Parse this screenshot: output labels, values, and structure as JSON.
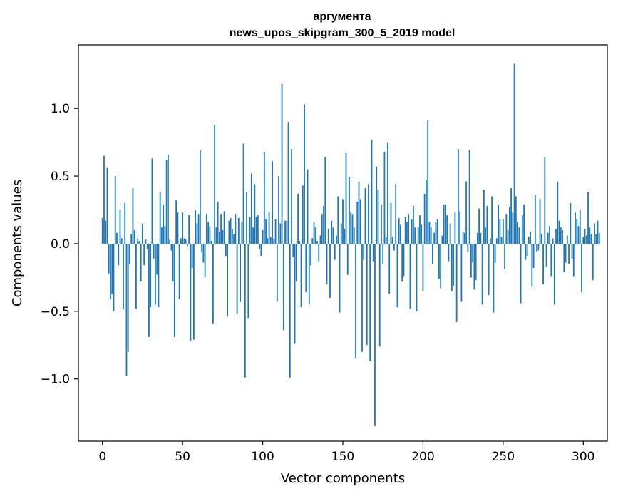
{
  "chart_data": {
    "type": "bar",
    "title_lines": [
      "аргумента",
      "news_upos_skipgram_300_5_2019 model"
    ],
    "xlabel": "Vector components",
    "ylabel": "Components values",
    "xlim": [
      -15,
      315
    ],
    "ylim": [
      -1.46,
      1.47
    ],
    "x_ticks": [
      0,
      50,
      100,
      150,
      200,
      250,
      300
    ],
    "x_tick_labels": [
      "0",
      "50",
      "100",
      "150",
      "200",
      "250",
      "300"
    ],
    "y_ticks": [
      -1.0,
      -0.5,
      0.0,
      0.5,
      1.0
    ],
    "y_tick_labels": [
      "−1.0",
      "−0.5",
      "0.0",
      "0.5",
      "1.0"
    ],
    "bar_color": "#1f77b4",
    "grid": false,
    "values": [
      0.19,
      0.65,
      0.17,
      0.56,
      -0.22,
      -0.41,
      -0.37,
      -0.5,
      0.5,
      0.08,
      -0.16,
      0.25,
      0.04,
      -0.48,
      0.3,
      -0.98,
      -0.8,
      -0.15,
      0.07,
      0.41,
      0.1,
      -0.48,
      0.04,
      0.02,
      -0.28,
      0.15,
      -0.16,
      0.03,
      -0.04,
      -0.69,
      -0.47,
      0.63,
      -0.11,
      -0.45,
      -0.23,
      -0.47,
      0.38,
      0.12,
      0.29,
      0.13,
      0.62,
      0.66,
      0.03,
      -0.05,
      -0.28,
      -0.69,
      0.32,
      0.23,
      -0.41,
      0.04,
      0.23,
      0.04,
      0.03,
      -0.02,
      0.21,
      -0.72,
      -0.18,
      -0.71,
      0.25,
      0.15,
      0.22,
      0.69,
      -0.06,
      -0.14,
      -0.25,
      0.22,
      0.16,
      0.13,
      0.02,
      -0.59,
      0.88,
      0.12,
      0.31,
      0.09,
      0.22,
      0.1,
      0.24,
      -0.09,
      -0.54,
      0.17,
      0.19,
      0.11,
      0.07,
      0.22,
      -0.52,
      0.19,
      -0.43,
      0.16,
      0.74,
      -0.99,
      0.38,
      -0.55,
      0.2,
      0.52,
      0.12,
      0.44,
      0.2,
      0.21,
      -0.04,
      -0.09,
      0.1,
      0.68,
      0.18,
      0.04,
      0.23,
      0.05,
      0.61,
      0.04,
      0.18,
      -0.43,
      0.5,
      0.15,
      1.18,
      -0.64,
      0.17,
      0.17,
      0.9,
      -0.99,
      0.7,
      -0.1,
      -0.74,
      -0.28,
      0.37,
      0.02,
      -0.47,
      0.43,
      1.03,
      -0.36,
      0.55,
      -0.45,
      -0.16,
      0.04,
      0.16,
      0.12,
      0.02,
      -0.13,
      0.06,
      0.22,
      0.28,
      0.64,
      -0.3,
      0.11,
      -0.4,
      0.17,
      0.12,
      -0.12,
      0.06,
      0.35,
      -0.51,
      0.15,
      0.33,
      0.11,
      0.67,
      -0.23,
      0.49,
      0.23,
      0.22,
      0.12,
      -0.85,
      0.31,
      0.46,
      0.33,
      -0.8,
      -0.12,
      0.41,
      -0.75,
      0.44,
      -0.87,
      0.77,
      -0.13,
      -1.35,
      0.57,
      0.4,
      -0.76,
      0.29,
      -0.15,
      0.68,
      0.05,
      0.75,
      -0.37,
      0.3,
      0.05,
      -0.05,
      0.44,
      -0.47,
      0.19,
      0.14,
      -0.28,
      -0.24,
      0.2,
      0.16,
      0.22,
      -0.48,
      0.18,
      0.28,
      0.12,
      -0.5,
      0.12,
      0.21,
      0.14,
      -0.35,
      0.37,
      0.47,
      0.91,
      0.16,
      0.12,
      -0.15,
      0.08,
      0.16,
      0.18,
      -0.26,
      -0.33,
      0.06,
      0.29,
      0.29,
      0.21,
      -0.13,
      0.15,
      -0.35,
      -0.31,
      0.23,
      -0.58,
      0.7,
      0.24,
      -0.43,
      0.09,
      0.08,
      0.46,
      -0.06,
      0.69,
      -0.25,
      -0.14,
      -0.34,
      -0.27,
      0.08,
      0.26,
      0.08,
      -0.45,
      0.4,
      0.12,
      0.28,
      -0.38,
      0.04,
      0.35,
      -0.51,
      -0.14,
      0.04,
      0.29,
      0.18,
      0.05,
      0.18,
      -0.19,
      0.22,
      0.1,
      0.27,
      0.41,
      0.23,
      1.33,
      0.35,
      0.16,
      0.12,
      -0.44,
      0.21,
      0.29,
      -0.12,
      -0.09,
      0.05,
      0.09,
      -0.32,
      -0.18,
      0.36,
      -0.06,
      -0.05,
      0.33,
      0.07,
      -0.3,
      0.64,
      -0.17,
      0.08,
      0.13,
      -0.24,
      0.04,
      -0.45,
      0.11,
      0.46,
      0.17,
      0.12,
      0.1,
      -0.21,
      -0.14,
      0.06,
      -0.15,
      0.3,
      -0.11,
      -0.24,
      0.23,
      0.18,
      0.13,
      0.25,
      -0.36,
      0.05,
      0.11,
      0.06,
      0.38,
      0.12,
      0.07,
      -0.27,
      0.15,
      0.07,
      0.17,
      0.08
    ]
  }
}
